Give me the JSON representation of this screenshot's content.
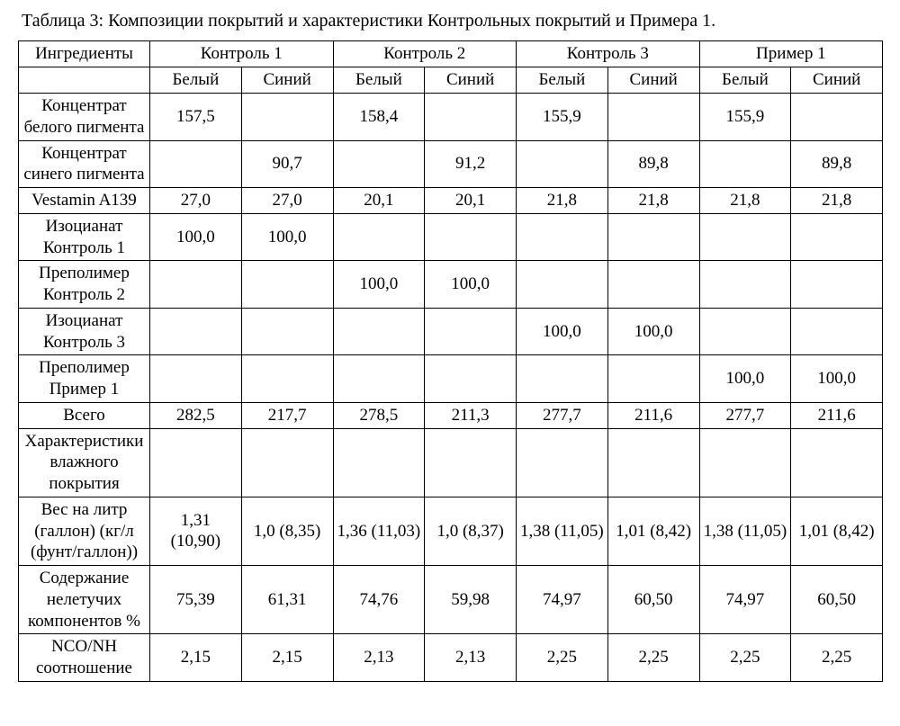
{
  "caption": "Таблица 3: Композиции покрытий и характеристики Контрольных покрытий и Примера 1.",
  "group_headers": {
    "ingredients": "Ингредиенты",
    "g1": "Контроль 1",
    "g2": "Контроль 2",
    "g3": "Контроль 3",
    "g4": "Пример 1"
  },
  "sub_headers": {
    "white": "Белый",
    "blue": "Синий"
  },
  "rows": [
    {
      "label": "Концентрат белого пигмента",
      "c": [
        "157,5",
        "",
        "158,4",
        "",
        "155,9",
        "",
        "155,9",
        ""
      ]
    },
    {
      "label": "Концентрат синего пигмента",
      "c": [
        "",
        "90,7",
        "",
        "91,2",
        "",
        "89,8",
        "",
        "89,8"
      ]
    },
    {
      "label": "Vestamin A139",
      "c": [
        "27,0",
        "27,0",
        "20,1",
        "20,1",
        "21,8",
        "21,8",
        "21,8",
        "21,8"
      ]
    },
    {
      "label": "Изоцианат Контроль 1",
      "c": [
        "100,0",
        "100,0",
        "",
        "",
        "",
        "",
        "",
        ""
      ]
    },
    {
      "label": "Преполимер Контроль 2",
      "c": [
        "",
        "",
        "100,0",
        "100,0",
        "",
        "",
        "",
        ""
      ]
    },
    {
      "label": "Изоцианат Контроль 3",
      "c": [
        "",
        "",
        "",
        "",
        "100,0",
        "100,0",
        "",
        ""
      ]
    },
    {
      "label": "Преполимер Пример 1",
      "c": [
        "",
        "",
        "",
        "",
        "",
        "",
        "100,0",
        "100,0"
      ]
    },
    {
      "label": "Всего",
      "c": [
        "282,5",
        "217,7",
        "278,5",
        "211,3",
        "277,7",
        "211,6",
        "277,7",
        "211,6"
      ]
    },
    {
      "label": "Характеристики влажного покрытия",
      "c": [
        "",
        "",
        "",
        "",
        "",
        "",
        "",
        ""
      ]
    },
    {
      "label": "Вес на литр (галлон) (кг/л (фунт/галлон))",
      "c": [
        "1,31 (10,90)",
        "1,0 (8,35)",
        "1,36 (11,03)",
        "1,0 (8,37)",
        "1,38 (11,05)",
        "1,01 (8,42)",
        "1,38 (11,05)",
        "1,01 (8,42)"
      ]
    },
    {
      "label": "Содержание нелетучих компонентов %",
      "c": [
        "75,39",
        "61,31",
        "74,76",
        "59,98",
        "74,97",
        "60,50",
        "74,97",
        "60,50"
      ]
    },
    {
      "label": "NCO/NH соотношение",
      "c": [
        "2,15",
        "2,15",
        "2,13",
        "2,13",
        "2,25",
        "2,25",
        "2,25",
        "2,25"
      ]
    }
  ]
}
